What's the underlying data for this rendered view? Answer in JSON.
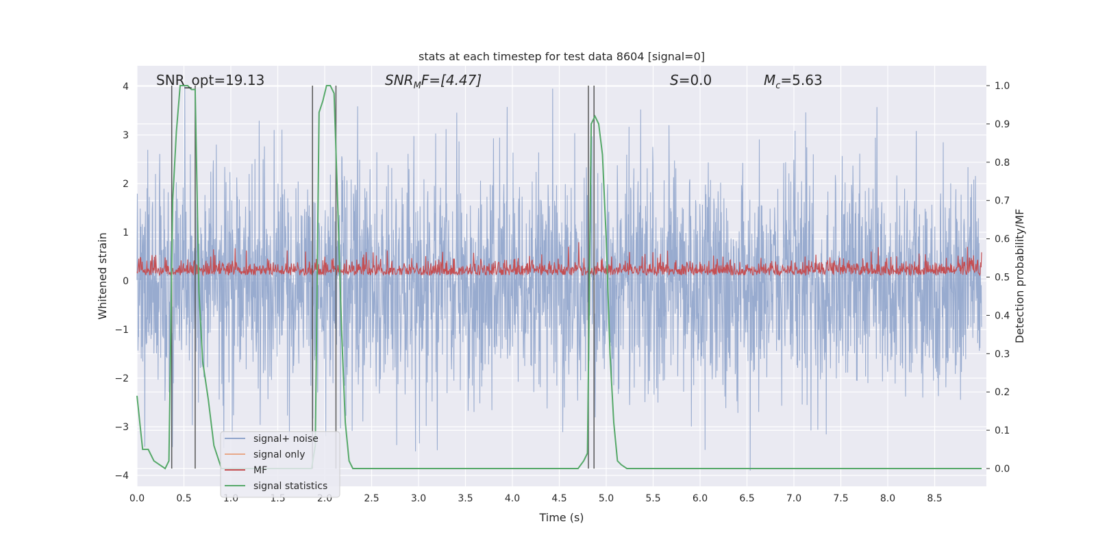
{
  "chart_data": {
    "type": "line",
    "title": "stats at each timestep for test data 8604 [signal=0]",
    "xlabel": "Time (s)",
    "ylabel": "Whitened strain",
    "y2label": "Detection probability/MF",
    "xlim": [
      0.0,
      9.0
    ],
    "ylim": [
      -4.2,
      4.4
    ],
    "y2lim": [
      -0.05,
      1.03
    ],
    "xticks": [
      "0.0",
      "0.5",
      "1.0",
      "1.5",
      "2.0",
      "2.5",
      "3.0",
      "3.5",
      "4.0",
      "4.5",
      "5.0",
      "5.5",
      "6.0",
      "6.5",
      "7.0",
      "7.5",
      "8.0",
      "8.5"
    ],
    "yticks": [
      "4",
      "3",
      "2",
      "1",
      "0",
      "−1",
      "−2",
      "−3",
      "−4"
    ],
    "y2ticks": [
      "1.0",
      "0.9",
      "0.8",
      "0.7",
      "0.6",
      "0.5",
      "0.4",
      "0.3",
      "0.2",
      "0.1",
      "0.0"
    ],
    "annotations": {
      "snr_opt_label": "SNR_opt=19.13",
      "snr_mf_main": "SNR",
      "snr_mf_sub": "M",
      "snr_mf_rest": "F=[4.47]",
      "s_main": "S",
      "s_rest": "=0.0",
      "mc_main": "M",
      "mc_sub": "c",
      "mc_rest": "=5.63"
    },
    "legend": {
      "position": "lower-left",
      "entries": [
        {
          "label": "signal+ noise",
          "color": "#8fa4cb"
        },
        {
          "label": "signal only",
          "color": "#e8a888"
        },
        {
          "label": "MF",
          "color": "#c44e52"
        },
        {
          "label": "signal statistics",
          "color": "#55a868"
        }
      ]
    },
    "vertical_lines_s": [
      0.37,
      0.62,
      1.87,
      2.12,
      4.81,
      4.87
    ],
    "series": [
      {
        "name": "signal statistics",
        "axis": "right",
        "color": "#55a868",
        "x": [
          0.0,
          0.06,
          0.12,
          0.18,
          0.24,
          0.3,
          0.34,
          0.38,
          0.42,
          0.46,
          0.5,
          0.54,
          0.58,
          0.62,
          0.66,
          0.7,
          0.76,
          0.82,
          0.9,
          1.0,
          1.2,
          1.4,
          1.6,
          1.8,
          1.86,
          1.9,
          1.94,
          1.98,
          2.02,
          2.06,
          2.1,
          2.14,
          2.18,
          2.22,
          2.26,
          2.3,
          2.4,
          2.6,
          3.0,
          3.5,
          4.0,
          4.5,
          4.7,
          4.76,
          4.8,
          4.84,
          4.88,
          4.92,
          4.96,
          5.0,
          5.04,
          5.08,
          5.12,
          5.16,
          5.22,
          5.4,
          6.0,
          7.0,
          8.0,
          9.0
        ],
        "y": [
          0.19,
          0.05,
          0.05,
          0.02,
          0.01,
          0.0,
          0.02,
          0.7,
          0.88,
          1.0,
          1.0,
          1.0,
          0.99,
          0.99,
          0.46,
          0.28,
          0.18,
          0.06,
          0.0,
          0.0,
          0.0,
          0.0,
          0.0,
          0.0,
          0.0,
          0.06,
          0.93,
          0.96,
          1.0,
          1.0,
          0.98,
          0.68,
          0.36,
          0.12,
          0.02,
          0.0,
          0.0,
          0.0,
          0.0,
          0.0,
          0.0,
          0.0,
          0.0,
          0.02,
          0.04,
          0.9,
          0.92,
          0.9,
          0.82,
          0.6,
          0.3,
          0.12,
          0.02,
          0.01,
          0.0,
          0.0,
          0.0,
          0.0,
          0.0,
          0.0
        ]
      },
      {
        "name": "MF",
        "axis": "right",
        "color": "#c44e52",
        "generated": "random baseline 0.50–0.56 with peaks near 0.58–0.60",
        "peak_max": 0.6
      },
      {
        "name": "signal+ noise",
        "axis": "left",
        "color": "#8fa4cb",
        "generated": "whitened Gaussian noise, range approx −3.9 to 4.0"
      },
      {
        "name": "signal only",
        "axis": "left",
        "color": "#e8a888",
        "values": "none visible (signal=0)"
      }
    ]
  }
}
